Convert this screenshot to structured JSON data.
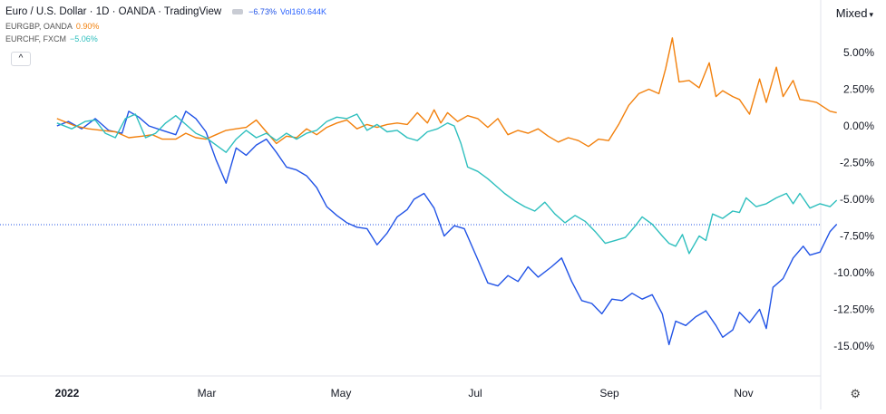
{
  "header": {
    "title": "Euro / U.S. Dollar · 1D · OANDA · TradingView",
    "main_change": "−6.73%",
    "volume_label": "Vol",
    "volume_value": "160.644K",
    "mode": "Mixed",
    "collapse_symbol": "^"
  },
  "legend": [
    {
      "label": "EURGBP, OANDA",
      "change": "0.90%",
      "color": "#f2800c"
    },
    {
      "label": "EURCHF, FXCM",
      "change": "−5.06%",
      "color": "#2ebfbe"
    }
  ],
  "colors": {
    "eurusd": "#2153e6",
    "eurgbp": "#f2800c",
    "eurchf": "#2ebfbe",
    "axis_text": "#131722",
    "ref_line": "#2153e6"
  },
  "icons": {
    "settings": "gear-icon",
    "collapse": "chevron-up-icon"
  },
  "chart_data": {
    "type": "line",
    "y_unit": "%",
    "ylim": [
      -16.5,
      8.0
    ],
    "y_ticks": [
      5,
      2.5,
      0,
      -2.5,
      -5,
      -7.5,
      -10,
      -12.5,
      -15
    ],
    "y_tick_labels": [
      "5.00%",
      "2.50%",
      "0.00%",
      "-2.50%",
      "-5.00%",
      "-7.50%",
      "-10.00%",
      "-12.50%",
      "-15.00%"
    ],
    "xlim": [
      0,
      12
    ],
    "x_ticks": [
      {
        "x": 0,
        "label": "2022",
        "bold": true
      },
      {
        "x": 2,
        "label": "Mar"
      },
      {
        "x": 4,
        "label": "May"
      },
      {
        "x": 6,
        "label": "Jul"
      },
      {
        "x": 8,
        "label": "Sep"
      },
      {
        "x": 10,
        "label": "Nov"
      }
    ],
    "reference_line": -6.73,
    "series": [
      {
        "name": "Euro / U.S. Dollar",
        "key": "eurusd",
        "points": [
          [
            -0.07,
            0.0
          ],
          [
            0.1,
            0.3
          ],
          [
            0.3,
            -0.2
          ],
          [
            0.5,
            0.5
          ],
          [
            0.7,
            -0.3
          ],
          [
            0.9,
            -0.5
          ],
          [
            1.0,
            1.0
          ],
          [
            1.15,
            0.6
          ],
          [
            1.3,
            0.0
          ],
          [
            1.5,
            -0.3
          ],
          [
            1.7,
            -0.6
          ],
          [
            1.85,
            1.0
          ],
          [
            2.0,
            0.5
          ],
          [
            2.15,
            -0.4
          ],
          [
            2.3,
            -2.3
          ],
          [
            2.45,
            -3.9
          ],
          [
            2.6,
            -1.5
          ],
          [
            2.75,
            -2.0
          ],
          [
            2.9,
            -1.3
          ],
          [
            3.05,
            -0.9
          ],
          [
            3.2,
            -1.8
          ],
          [
            3.35,
            -2.8
          ],
          [
            3.5,
            -3.0
          ],
          [
            3.65,
            -3.4
          ],
          [
            3.8,
            -4.2
          ],
          [
            3.95,
            -5.5
          ],
          [
            4.1,
            -6.1
          ],
          [
            4.25,
            -6.6
          ],
          [
            4.4,
            -6.9
          ],
          [
            4.55,
            -7.0
          ],
          [
            4.7,
            -8.1
          ],
          [
            4.85,
            -7.3
          ],
          [
            5.0,
            -6.2
          ],
          [
            5.15,
            -5.7
          ],
          [
            5.25,
            -5.0
          ],
          [
            5.4,
            -4.6
          ],
          [
            5.55,
            -5.6
          ],
          [
            5.7,
            -7.5
          ],
          [
            5.85,
            -6.8
          ],
          [
            6.0,
            -7.0
          ],
          [
            6.2,
            -9.1
          ],
          [
            6.35,
            -10.7
          ],
          [
            6.5,
            -10.9
          ],
          [
            6.65,
            -10.2
          ],
          [
            6.8,
            -10.6
          ],
          [
            6.95,
            -9.6
          ],
          [
            7.1,
            -10.3
          ],
          [
            7.3,
            -9.6
          ],
          [
            7.45,
            -9.0
          ],
          [
            7.6,
            -10.6
          ],
          [
            7.75,
            -11.9
          ],
          [
            7.9,
            -12.1
          ],
          [
            8.05,
            -12.8
          ],
          [
            8.2,
            -11.8
          ],
          [
            8.35,
            -11.9
          ],
          [
            8.5,
            -11.4
          ],
          [
            8.65,
            -11.8
          ],
          [
            8.8,
            -11.5
          ],
          [
            8.95,
            -12.8
          ],
          [
            9.05,
            -14.9
          ],
          [
            9.15,
            -13.3
          ],
          [
            9.3,
            -13.6
          ],
          [
            9.45,
            -13.0
          ],
          [
            9.6,
            -12.6
          ],
          [
            9.75,
            -13.6
          ],
          [
            9.85,
            -14.4
          ],
          [
            10.0,
            -13.9
          ],
          [
            10.1,
            -12.7
          ],
          [
            10.25,
            -13.4
          ],
          [
            10.4,
            -12.5
          ],
          [
            10.5,
            -13.8
          ],
          [
            10.6,
            -11.0
          ],
          [
            10.75,
            -10.4
          ],
          [
            10.9,
            -9.0
          ],
          [
            11.05,
            -8.2
          ],
          [
            11.15,
            -8.8
          ],
          [
            11.3,
            -8.6
          ],
          [
            11.45,
            -7.2
          ],
          [
            11.55,
            -6.7
          ]
        ]
      },
      {
        "name": "EURGBP, OANDA",
        "key": "eurgbp",
        "points": [
          [
            -0.07,
            0.5
          ],
          [
            0.2,
            0.0
          ],
          [
            0.4,
            -0.2
          ],
          [
            0.6,
            -0.3
          ],
          [
            0.8,
            -0.4
          ],
          [
            1.0,
            -0.8
          ],
          [
            1.2,
            -0.7
          ],
          [
            1.35,
            -0.6
          ],
          [
            1.5,
            -0.9
          ],
          [
            1.7,
            -0.9
          ],
          [
            1.85,
            -0.5
          ],
          [
            2.0,
            -0.8
          ],
          [
            2.15,
            -0.9
          ],
          [
            2.3,
            -0.6
          ],
          [
            2.45,
            -0.3
          ],
          [
            2.6,
            -0.2
          ],
          [
            2.75,
            -0.1
          ],
          [
            2.9,
            0.4
          ],
          [
            3.05,
            -0.4
          ],
          [
            3.2,
            -1.2
          ],
          [
            3.35,
            -0.7
          ],
          [
            3.5,
            -0.8
          ],
          [
            3.65,
            -0.2
          ],
          [
            3.8,
            -0.6
          ],
          [
            3.95,
            -0.1
          ],
          [
            4.1,
            0.2
          ],
          [
            4.25,
            0.4
          ],
          [
            4.4,
            -0.2
          ],
          [
            4.55,
            0.1
          ],
          [
            4.7,
            -0.1
          ],
          [
            4.85,
            0.1
          ],
          [
            5.0,
            0.2
          ],
          [
            5.15,
            0.1
          ],
          [
            5.3,
            0.9
          ],
          [
            5.45,
            0.2
          ],
          [
            5.55,
            1.1
          ],
          [
            5.65,
            0.2
          ],
          [
            5.75,
            0.9
          ],
          [
            5.9,
            0.3
          ],
          [
            6.05,
            0.7
          ],
          [
            6.2,
            0.5
          ],
          [
            6.35,
            -0.1
          ],
          [
            6.5,
            0.5
          ],
          [
            6.65,
            -0.6
          ],
          [
            6.8,
            -0.3
          ],
          [
            6.95,
            -0.5
          ],
          [
            7.1,
            -0.2
          ],
          [
            7.25,
            -0.7
          ],
          [
            7.4,
            -1.1
          ],
          [
            7.55,
            -0.8
          ],
          [
            7.7,
            -1.0
          ],
          [
            7.85,
            -1.4
          ],
          [
            8.0,
            -0.9
          ],
          [
            8.15,
            -1.0
          ],
          [
            8.3,
            0.1
          ],
          [
            8.45,
            1.4
          ],
          [
            8.6,
            2.2
          ],
          [
            8.75,
            2.5
          ],
          [
            8.9,
            2.2
          ],
          [
            9.0,
            3.9
          ],
          [
            9.1,
            6.0
          ],
          [
            9.2,
            3.0
          ],
          [
            9.35,
            3.1
          ],
          [
            9.5,
            2.6
          ],
          [
            9.65,
            4.3
          ],
          [
            9.75,
            2.0
          ],
          [
            9.85,
            2.4
          ],
          [
            10.0,
            2.0
          ],
          [
            10.1,
            1.8
          ],
          [
            10.25,
            0.8
          ],
          [
            10.4,
            3.2
          ],
          [
            10.5,
            1.6
          ],
          [
            10.65,
            4.0
          ],
          [
            10.75,
            2.0
          ],
          [
            10.9,
            3.1
          ],
          [
            11.0,
            1.8
          ],
          [
            11.15,
            1.7
          ],
          [
            11.25,
            1.6
          ],
          [
            11.35,
            1.3
          ],
          [
            11.45,
            1.0
          ],
          [
            11.55,
            0.9
          ]
        ]
      },
      {
        "name": "EURCHF, FXCM",
        "key": "eurchf",
        "points": [
          [
            -0.07,
            0.2
          ],
          [
            0.15,
            -0.2
          ],
          [
            0.35,
            0.3
          ],
          [
            0.5,
            0.4
          ],
          [
            0.65,
            -0.5
          ],
          [
            0.8,
            -0.8
          ],
          [
            0.95,
            0.5
          ],
          [
            1.1,
            0.8
          ],
          [
            1.25,
            -0.8
          ],
          [
            1.4,
            -0.5
          ],
          [
            1.55,
            0.2
          ],
          [
            1.7,
            0.7
          ],
          [
            1.85,
            0.1
          ],
          [
            2.0,
            -0.5
          ],
          [
            2.15,
            -0.8
          ],
          [
            2.3,
            -1.3
          ],
          [
            2.45,
            -1.8
          ],
          [
            2.6,
            -0.9
          ],
          [
            2.75,
            -0.3
          ],
          [
            2.9,
            -0.8
          ],
          [
            3.05,
            -0.5
          ],
          [
            3.2,
            -1.0
          ],
          [
            3.35,
            -0.5
          ],
          [
            3.5,
            -0.9
          ],
          [
            3.65,
            -0.5
          ],
          [
            3.8,
            -0.3
          ],
          [
            3.95,
            0.3
          ],
          [
            4.1,
            0.6
          ],
          [
            4.25,
            0.5
          ],
          [
            4.4,
            0.8
          ],
          [
            4.55,
            -0.3
          ],
          [
            4.7,
            0.1
          ],
          [
            4.85,
            -0.4
          ],
          [
            5.0,
            -0.3
          ],
          [
            5.15,
            -0.8
          ],
          [
            5.3,
            -1.0
          ],
          [
            5.45,
            -0.4
          ],
          [
            5.6,
            -0.2
          ],
          [
            5.75,
            0.2
          ],
          [
            5.85,
            0.0
          ],
          [
            5.95,
            -1.2
          ],
          [
            6.05,
            -2.8
          ],
          [
            6.2,
            -3.1
          ],
          [
            6.35,
            -3.6
          ],
          [
            6.5,
            -4.2
          ],
          [
            6.6,
            -4.6
          ],
          [
            6.75,
            -5.1
          ],
          [
            6.9,
            -5.5
          ],
          [
            7.05,
            -5.8
          ],
          [
            7.2,
            -5.2
          ],
          [
            7.35,
            -6.0
          ],
          [
            7.5,
            -6.6
          ],
          [
            7.65,
            -6.1
          ],
          [
            7.8,
            -6.5
          ],
          [
            7.95,
            -7.2
          ],
          [
            8.1,
            -8.0
          ],
          [
            8.25,
            -7.8
          ],
          [
            8.4,
            -7.6
          ],
          [
            8.55,
            -6.8
          ],
          [
            8.65,
            -6.2
          ],
          [
            8.8,
            -6.7
          ],
          [
            8.95,
            -7.5
          ],
          [
            9.05,
            -8.0
          ],
          [
            9.15,
            -8.2
          ],
          [
            9.25,
            -7.4
          ],
          [
            9.35,
            -8.7
          ],
          [
            9.5,
            -7.5
          ],
          [
            9.6,
            -7.8
          ],
          [
            9.7,
            -6.0
          ],
          [
            9.85,
            -6.3
          ],
          [
            10.0,
            -5.8
          ],
          [
            10.1,
            -5.9
          ],
          [
            10.2,
            -4.9
          ],
          [
            10.35,
            -5.5
          ],
          [
            10.5,
            -5.3
          ],
          [
            10.65,
            -4.9
          ],
          [
            10.8,
            -4.6
          ],
          [
            10.9,
            -5.3
          ],
          [
            11.0,
            -4.6
          ],
          [
            11.15,
            -5.6
          ],
          [
            11.3,
            -5.3
          ],
          [
            11.45,
            -5.5
          ],
          [
            11.55,
            -5.06
          ]
        ]
      }
    ]
  }
}
